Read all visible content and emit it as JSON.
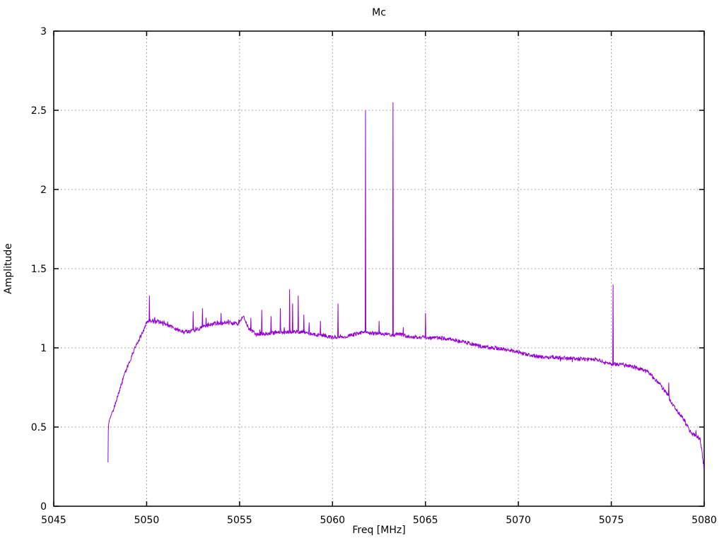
{
  "chart_data": {
    "type": "line",
    "title": "Mc",
    "xlabel": "Freq [MHz]",
    "ylabel": "Amplitude",
    "xlim": [
      5045,
      5080
    ],
    "ylim": [
      0,
      3
    ],
    "xticks": [
      5045,
      5050,
      5055,
      5060,
      5065,
      5070,
      5075,
      5080
    ],
    "yticks": [
      0,
      0.5,
      1,
      1.5,
      2,
      2.5,
      3
    ],
    "grid": true,
    "legend_position": "none",
    "background_color": "#ffffff",
    "grid_color": "#ababab",
    "axis_color": "#000000",
    "series": [
      {
        "name": "Mc",
        "color": "#9400d3",
        "x_start": 5047.92,
        "x_end": 5080.0,
        "samples": 1800,
        "noise_sigma": 0.012,
        "noise_seed": 19,
        "baseline_points": [
          [
            5047.92,
            0.28
          ],
          [
            5047.94,
            0.5
          ],
          [
            5048.0,
            0.55
          ],
          [
            5048.05,
            0.56
          ],
          [
            5048.15,
            0.6
          ],
          [
            5048.2,
            0.6
          ],
          [
            5048.45,
            0.7
          ],
          [
            5048.8,
            0.83
          ],
          [
            5049.2,
            0.95
          ],
          [
            5049.5,
            1.03
          ],
          [
            5049.8,
            1.1
          ],
          [
            5050.0,
            1.16
          ],
          [
            5050.3,
            1.175
          ],
          [
            5050.9,
            1.16
          ],
          [
            5051.5,
            1.12
          ],
          [
            5052.0,
            1.1
          ],
          [
            5052.6,
            1.11
          ],
          [
            5053.2,
            1.14
          ],
          [
            5053.8,
            1.155
          ],
          [
            5054.4,
            1.16
          ],
          [
            5054.9,
            1.15
          ],
          [
            5055.2,
            1.2
          ],
          [
            5055.5,
            1.12
          ],
          [
            5055.9,
            1.085
          ],
          [
            5056.5,
            1.09
          ],
          [
            5057.3,
            1.1
          ],
          [
            5058.3,
            1.1
          ],
          [
            5059.0,
            1.085
          ],
          [
            5059.8,
            1.07
          ],
          [
            5060.3,
            1.065
          ],
          [
            5061.0,
            1.08
          ],
          [
            5061.7,
            1.1
          ],
          [
            5062.4,
            1.09
          ],
          [
            5063.1,
            1.08
          ],
          [
            5063.6,
            1.085
          ],
          [
            5064.2,
            1.07
          ],
          [
            5065.0,
            1.065
          ],
          [
            5066.0,
            1.06
          ],
          [
            5066.7,
            1.045
          ],
          [
            5067.3,
            1.03
          ],
          [
            5068.0,
            1.01
          ],
          [
            5069.0,
            0.995
          ],
          [
            5070.0,
            0.975
          ],
          [
            5070.7,
            0.95
          ],
          [
            5071.5,
            0.94
          ],
          [
            5072.5,
            0.935
          ],
          [
            5073.5,
            0.93
          ],
          [
            5074.2,
            0.925
          ],
          [
            5075.0,
            0.9
          ],
          [
            5075.8,
            0.89
          ],
          [
            5076.4,
            0.875
          ],
          [
            5077.1,
            0.84
          ],
          [
            5077.6,
            0.77
          ],
          [
            5078.0,
            0.71
          ],
          [
            5078.35,
            0.63
          ],
          [
            5078.7,
            0.58
          ],
          [
            5079.0,
            0.53
          ],
          [
            5079.3,
            0.46
          ],
          [
            5079.65,
            0.44
          ],
          [
            5079.8,
            0.42
          ],
          [
            5079.9,
            0.32
          ],
          [
            5080.0,
            0.23
          ]
        ],
        "spikes": [
          [
            5050.15,
            1.33
          ],
          [
            5052.5,
            1.23
          ],
          [
            5053.0,
            1.25
          ],
          [
            5053.2,
            1.19
          ],
          [
            5054.0,
            1.22
          ],
          [
            5054.4,
            1.18
          ],
          [
            5055.6,
            1.19
          ],
          [
            5056.2,
            1.24
          ],
          [
            5056.7,
            1.2
          ],
          [
            5057.2,
            1.25
          ],
          [
            5057.7,
            1.37
          ],
          [
            5057.85,
            1.28
          ],
          [
            5058.15,
            1.33
          ],
          [
            5058.45,
            1.21
          ],
          [
            5058.75,
            1.16
          ],
          [
            5059.35,
            1.17
          ],
          [
            5060.3,
            1.28
          ],
          [
            5061.77,
            2.5
          ],
          [
            5062.5,
            1.17
          ],
          [
            5063.26,
            2.55
          ],
          [
            5063.8,
            1.13
          ],
          [
            5065.0,
            1.22
          ],
          [
            5075.1,
            1.4
          ],
          [
            5078.1,
            0.78
          ],
          [
            5079.55,
            0.48
          ]
        ],
        "spiky_zones": [
          [
            5050.4,
            5055.4,
            0.05,
            2.0
          ],
          [
            5055.5,
            5059.6,
            0.09,
            2.6
          ],
          [
            5059.6,
            5061.5,
            0.04,
            2.0
          ]
        ]
      }
    ]
  }
}
